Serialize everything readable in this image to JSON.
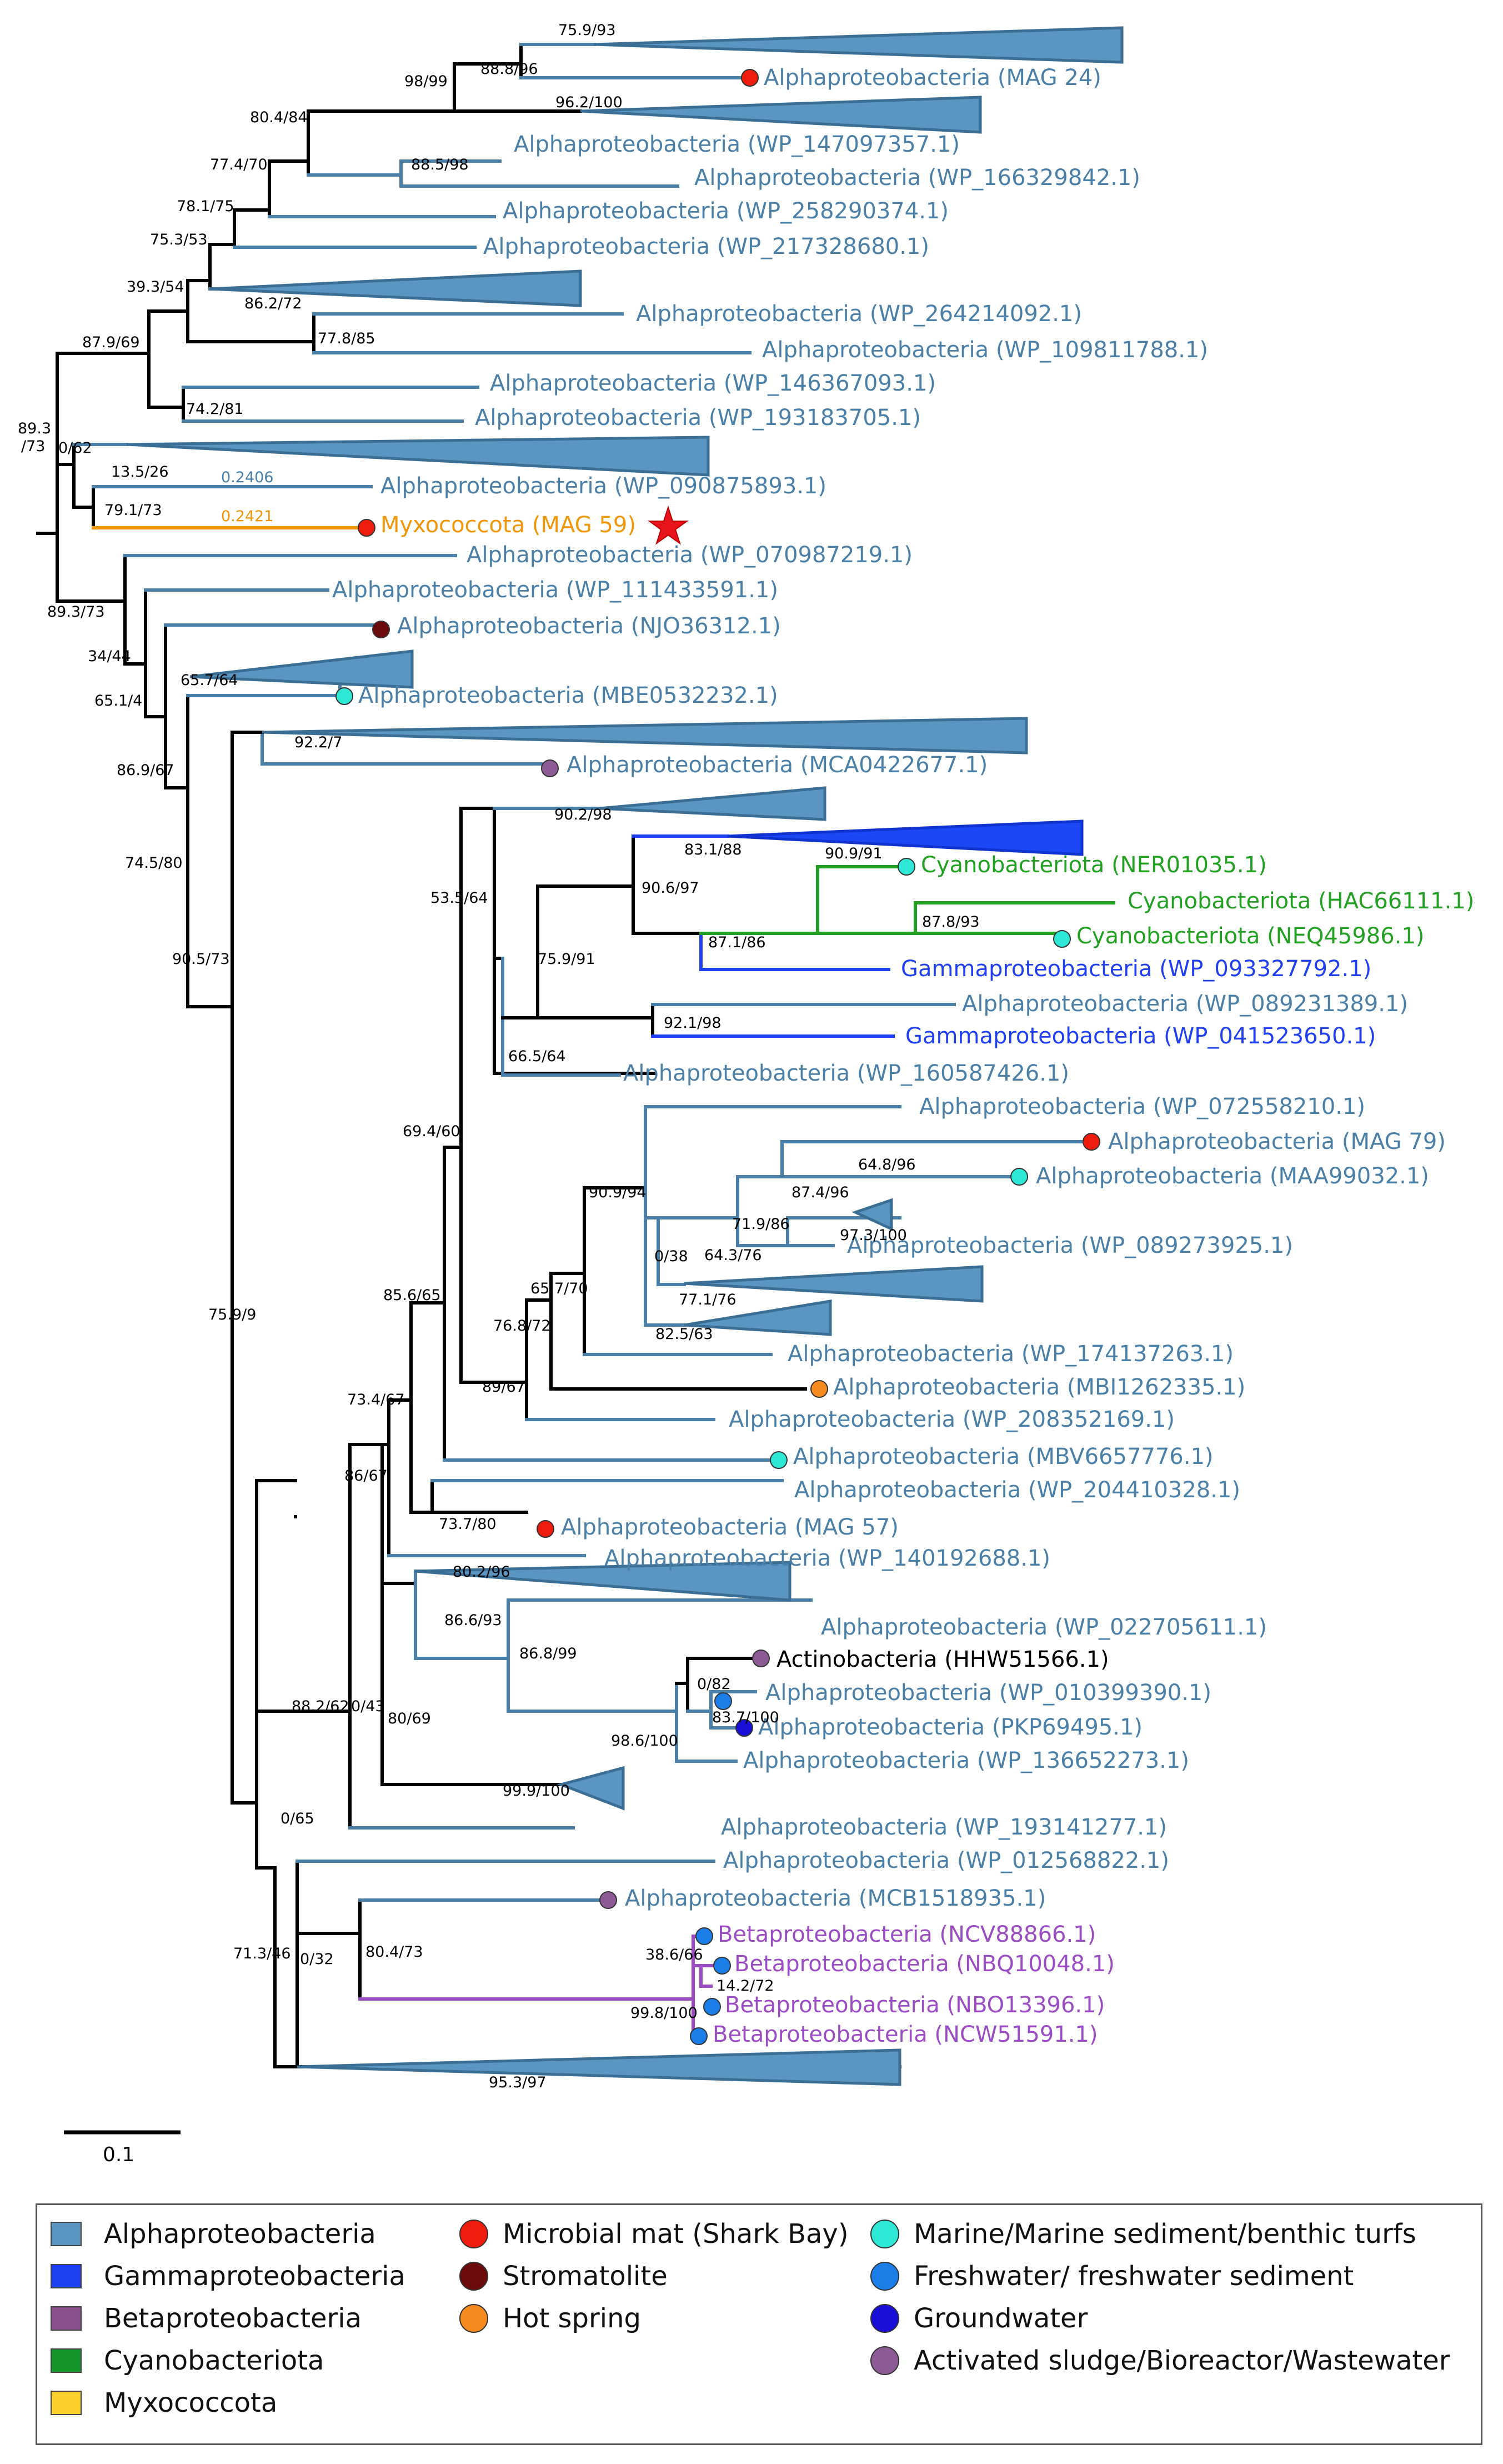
{
  "colors": {
    "alpha": "#4a7fa8",
    "alpha_fill": "#5b96c2",
    "gamma": "#1f3ff0",
    "gamma_fill": "#1c47f5",
    "cyano": "#22a022",
    "myxo": "#f0960a",
    "beta": "#9b4bc4",
    "black": "#000000"
  },
  "leaves": [
    {
      "id": "L1",
      "text": "Alphaproteobacteria (MAG 24)",
      "color": "#4a7fa8"
    },
    {
      "id": "L2",
      "text": "Alphaproteobacteria (WP_147097357.1)",
      "color": "#4a7fa8"
    },
    {
      "id": "L3",
      "text": "Alphaproteobacteria (WP_166329842.1)",
      "color": "#4a7fa8"
    },
    {
      "id": "L4",
      "text": "Alphaproteobacteria (WP_258290374.1)",
      "color": "#4a7fa8"
    },
    {
      "id": "L5",
      "text": "Alphaproteobacteria (WP_217328680.1)",
      "color": "#4a7fa8"
    },
    {
      "id": "L6",
      "text": "Alphaproteobacteria (WP_264214092.1)",
      "color": "#4a7fa8"
    },
    {
      "id": "L7",
      "text": "Alphaproteobacteria (WP_109811788.1)",
      "color": "#4a7fa8"
    },
    {
      "id": "L8",
      "text": "Alphaproteobacteria (WP_146367093.1)",
      "color": "#4a7fa8"
    },
    {
      "id": "L9",
      "text": "Alphaproteobacteria (WP_193183705.1)",
      "color": "#4a7fa8"
    },
    {
      "id": "L10",
      "text": "Alphaproteobacteria (WP_090875893.1)",
      "color": "#4a7fa8"
    },
    {
      "id": "L11",
      "text": "Myxococcota (MAG 59)",
      "color": "#f0960a"
    },
    {
      "id": "L12",
      "text": "Alphaproteobacteria (WP_070987219.1)",
      "color": "#4a7fa8"
    },
    {
      "id": "L13",
      "text": "Alphaproteobacteria (WP_111433591.1)",
      "color": "#4a7fa8"
    },
    {
      "id": "L14",
      "text": "Alphaproteobacteria (NJO36312.1)",
      "color": "#4a7fa8"
    },
    {
      "id": "L15",
      "text": "Alphaproteobacteria (MBE0532232.1)",
      "color": "#4a7fa8"
    },
    {
      "id": "L16",
      "text": "Alphaproteobacteria (MCA0422677.1)",
      "color": "#4a7fa8"
    },
    {
      "id": "L17",
      "text": "Cyanobacteriota (NER01035.1)",
      "color": "#22a022"
    },
    {
      "id": "L18",
      "text": "Cyanobacteriota (HAC66111.1)",
      "color": "#22a022"
    },
    {
      "id": "L19",
      "text": "Cyanobacteriota (NEQ45986.1)",
      "color": "#22a022"
    },
    {
      "id": "L20",
      "text": "Gammaproteobacteria (WP_093327792.1)",
      "color": "#1f3ff0"
    },
    {
      "id": "L21",
      "text": "Alphaproteobacteria (WP_089231389.1)",
      "color": "#4a7fa8"
    },
    {
      "id": "L22",
      "text": "Gammaproteobacteria (WP_041523650.1)",
      "color": "#1f3ff0"
    },
    {
      "id": "L23",
      "text": "Alphaproteobacteria (WP_160587426.1)",
      "color": "#4a7fa8"
    },
    {
      "id": "L24",
      "text": "Alphaproteobacteria (WP_072558210.1)",
      "color": "#4a7fa8"
    },
    {
      "id": "L25",
      "text": "Alphaproteobacteria (MAG 79)",
      "color": "#4a7fa8"
    },
    {
      "id": "L26",
      "text": "Alphaproteobacteria (MAA99032.1)",
      "color": "#4a7fa8"
    },
    {
      "id": "L27",
      "text": "Alphaproteobacteria (WP_089273925.1)",
      "color": "#4a7fa8"
    },
    {
      "id": "L28",
      "text": "Alphaproteobacteria (WP_174137263.1)",
      "color": "#4a7fa8"
    },
    {
      "id": "L29",
      "text": "Alphaproteobacteria (MBI1262335.1)",
      "color": "#4a7fa8"
    },
    {
      "id": "L30",
      "text": "Alphaproteobacteria (WP_208352169.1)",
      "color": "#4a7fa8"
    },
    {
      "id": "L31",
      "text": "Alphaproteobacteria (MBV6657776.1)",
      "color": "#4a7fa8"
    },
    {
      "id": "L32",
      "text": "Alphaproteobacteria (WP_204410328.1)",
      "color": "#4a7fa8"
    },
    {
      "id": "L33",
      "text": "Alphaproteobacteria (MAG 57)",
      "color": "#4a7fa8"
    },
    {
      "id": "L34",
      "text": "Alphaproteobacteria (WP_140192688.1)",
      "color": "#4a7fa8"
    },
    {
      "id": "L35",
      "text": "Alphaproteobacteria (WP_022705611.1)",
      "color": "#4a7fa8"
    },
    {
      "id": "L36",
      "text": "Actinobacteria (HHW51566.1)",
      "color": "#000000"
    },
    {
      "id": "L37",
      "text": "Alphaproteobacteria (WP_010399390.1)",
      "color": "#4a7fa8"
    },
    {
      "id": "L38",
      "text": "Alphaproteobacteria (PKP69495.1)",
      "color": "#4a7fa8"
    },
    {
      "id": "L39",
      "text": "Alphaproteobacteria (WP_136652273.1)",
      "color": "#4a7fa8"
    },
    {
      "id": "L40",
      "text": "Alphaproteobacteria (WP_193141277.1)",
      "color": "#4a7fa8"
    },
    {
      "id": "L41",
      "text": "Alphaproteobacteria (WP_012568822.1)",
      "color": "#4a7fa8"
    },
    {
      "id": "L42",
      "text": "Alphaproteobacteria (MCB1518935.1)",
      "color": "#4a7fa8"
    },
    {
      "id": "L43",
      "text": "Betaproteobacteria (NCV88866.1)",
      "color": "#9b4bc4"
    },
    {
      "id": "L44",
      "text": "Betaproteobacteria (NBQ10048.1)",
      "color": "#9b4bc4"
    },
    {
      "id": "L45",
      "text": "Betaproteobacteria (NBO13396.1)",
      "color": "#9b4bc4"
    },
    {
      "id": "L46",
      "text": "Betaproteobacteria (NCW51591.1)",
      "color": "#9b4bc4"
    }
  ],
  "support_values": [
    {
      "id": "S1",
      "text": "75.9/93"
    },
    {
      "id": "S2",
      "text": "98/99"
    },
    {
      "id": "S3",
      "text": "88.8/96"
    },
    {
      "id": "S4",
      "text": "80.4/84"
    },
    {
      "id": "S5",
      "text": "96.2/100"
    },
    {
      "id": "S6",
      "text": "77.4/70"
    },
    {
      "id": "S7",
      "text": "88.5/98"
    },
    {
      "id": "S8",
      "text": "78.1/75"
    },
    {
      "id": "S9",
      "text": "75.3/53"
    },
    {
      "id": "S10",
      "text": "39.3/54"
    },
    {
      "id": "S11",
      "text": "86.2/72"
    },
    {
      "id": "S12",
      "text": "87.9/69"
    },
    {
      "id": "S13",
      "text": "77.8/85"
    },
    {
      "id": "S14",
      "text": "74.2/81"
    },
    {
      "id": "S15",
      "text": "89.3"
    },
    {
      "id": "S16",
      "text": "/73"
    },
    {
      "id": "S17",
      "text": "0/62"
    },
    {
      "id": "S18",
      "text": "13.5/26"
    },
    {
      "id": "S19",
      "text": "79.1/73"
    },
    {
      "id": "S20",
      "text": "89.3/73"
    },
    {
      "id": "S21",
      "text": "34/44"
    },
    {
      "id": "S22",
      "text": "65.1/4"
    },
    {
      "id": "S23",
      "text": "65.7/64"
    },
    {
      "id": "S24",
      "text": "92.2/7"
    },
    {
      "id": "S25",
      "text": "86.9/67"
    },
    {
      "id": "S26",
      "text": "74.5/80"
    },
    {
      "id": "S27",
      "text": "90.2/98"
    },
    {
      "id": "S28",
      "text": "83.1/88"
    },
    {
      "id": "S29",
      "text": "53.5/64"
    },
    {
      "id": "S30",
      "text": "90.6/97"
    },
    {
      "id": "S31",
      "text": "90.9/91"
    },
    {
      "id": "S32",
      "text": "87.8/93"
    },
    {
      "id": "S33",
      "text": "87.1/86"
    },
    {
      "id": "S34",
      "text": "75.9/91"
    },
    {
      "id": "S35",
      "text": "90.5/73"
    },
    {
      "id": "S36",
      "text": "92.1/98"
    },
    {
      "id": "S37",
      "text": "66.5/64"
    },
    {
      "id": "S38",
      "text": "69.4/60"
    },
    {
      "id": "S39",
      "text": "64.8/96"
    },
    {
      "id": "S40",
      "text": "87.4/96"
    },
    {
      "id": "S41",
      "text": "90.9/94"
    },
    {
      "id": "S42",
      "text": "71.9/86"
    },
    {
      "id": "S43",
      "text": "97.3/100"
    },
    {
      "id": "S44",
      "text": "0/38"
    },
    {
      "id": "S45",
      "text": "64.3/76"
    },
    {
      "id": "S46",
      "text": "65.7/70"
    },
    {
      "id": "S47",
      "text": "77.1/76"
    },
    {
      "id": "S48",
      "text": "75.9/9"
    },
    {
      "id": "S49",
      "text": "85.6/65"
    },
    {
      "id": "S50",
      "text": "76.8/72"
    },
    {
      "id": "S51",
      "text": "82.5/63"
    },
    {
      "id": "S52",
      "text": "89/67"
    },
    {
      "id": "S53",
      "text": "73.4/67"
    },
    {
      "id": "S54",
      "text": "86/67"
    },
    {
      "id": "S55",
      "text": "73.7/80"
    },
    {
      "id": "S56",
      "text": "80.2/96"
    },
    {
      "id": "S57",
      "text": "86.6/93"
    },
    {
      "id": "S58",
      "text": "86.8/99"
    },
    {
      "id": "S59",
      "text": "0/82"
    },
    {
      "id": "S60",
      "text": "88.2/62"
    },
    {
      "id": "S61",
      "text": "0/43"
    },
    {
      "id": "S62",
      "text": "80/69"
    },
    {
      "id": "S63",
      "text": "83.7/100"
    },
    {
      "id": "S64",
      "text": "98.6/100"
    },
    {
      "id": "S65",
      "text": "99.9/100"
    },
    {
      "id": "S66",
      "text": "0/65"
    },
    {
      "id": "S67",
      "text": "38.6/66"
    },
    {
      "id": "S68",
      "text": "14.2/72"
    },
    {
      "id": "S69",
      "text": "71.3/46"
    },
    {
      "id": "S70",
      "text": "0/32"
    },
    {
      "id": "S71",
      "text": "80.4/73"
    },
    {
      "id": "S72",
      "text": "99.8/100"
    },
    {
      "id": "S73",
      "text": "95.3/97"
    }
  ],
  "branch_lengths": [
    {
      "id": "B1",
      "text": "0.2406",
      "color": "#4a7fa8"
    },
    {
      "id": "B2",
      "text": "0.2421",
      "color": "#f0960a"
    }
  ],
  "scale_bar": {
    "label": "0.1"
  },
  "legend": {
    "taxa": [
      {
        "label": "Alphaproteobacteria",
        "color": "#5b96c2"
      },
      {
        "label": "Gammaproteobacteria",
        "color": "#1c3ff0"
      },
      {
        "label": "Betaproteobacteria",
        "color": "#8c4f8e"
      },
      {
        "label": "Cyanobacteriota",
        "color": "#15962a"
      },
      {
        "label": "Myxococcota",
        "color": "#fcd02a"
      }
    ],
    "habitats": [
      {
        "label": "Microbial mat (Shark Bay)",
        "color": "#ee1c0c",
        "icon": "circle-red-icon"
      },
      {
        "label": "Stromatolite",
        "color": "#6b0a0a",
        "icon": "circle-darkred-icon"
      },
      {
        "label": "Hot spring",
        "color": "#f58a1e",
        "icon": "circle-orange-icon"
      },
      {
        "label": "Marine/Marine sediment/benthic turfs",
        "color": "#2ee8d6",
        "icon": "circle-cyan-icon"
      },
      {
        "label": "Freshwater/ freshwater sediment",
        "color": "#1b7ee8",
        "icon": "circle-blue-icon"
      },
      {
        "label": "Groundwater",
        "color": "#1a0fd6",
        "icon": "circle-navy-icon"
      },
      {
        "label": "Activated sludge/Bioreactor/Wastewater",
        "color": "#8c5a95",
        "icon": "circle-purple-icon"
      }
    ]
  }
}
